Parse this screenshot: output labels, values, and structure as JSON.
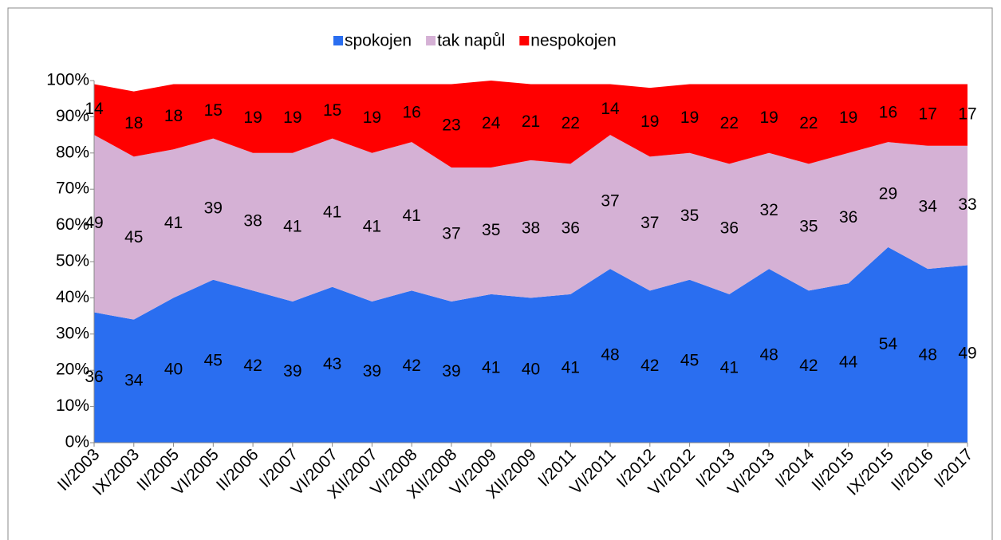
{
  "chart_data": {
    "type": "area",
    "stacked": true,
    "categories": [
      "II/2003",
      "IX/2003",
      "II/2005",
      "VI/2005",
      "II/2006",
      "I/2007",
      "VI/2007",
      "XII/2007",
      "VI/2008",
      "XII/2008",
      "VI/2009",
      "XII/2009",
      "I/2011",
      "VI/2011",
      "I/2012",
      "VI/2012",
      "I/2013",
      "VI/2013",
      "I/2014",
      "II/2015",
      "IX/2015",
      "II/2016",
      "I/2017"
    ],
    "series": [
      {
        "name": "spokojen",
        "color": "#2a6ef0",
        "values": [
          36,
          34,
          40,
          45,
          42,
          39,
          43,
          39,
          42,
          39,
          41,
          40,
          41,
          48,
          42,
          45,
          41,
          48,
          42,
          44,
          54,
          48,
          49
        ]
      },
      {
        "name": "tak napůl",
        "color": "#d5b1d5",
        "values": [
          49,
          45,
          41,
          39,
          38,
          41,
          41,
          41,
          41,
          37,
          35,
          38,
          36,
          37,
          37,
          35,
          36,
          32,
          35,
          36,
          29,
          34,
          33
        ]
      },
      {
        "name": "nespokojen",
        "color": "#ff0000",
        "values": [
          14,
          18,
          18,
          15,
          19,
          19,
          15,
          19,
          16,
          23,
          24,
          21,
          22,
          14,
          19,
          19,
          22,
          19,
          22,
          19,
          16,
          17,
          17
        ]
      }
    ],
    "ylim": [
      0,
      100
    ],
    "yticks": [
      {
        "value": 0,
        "label": "0%"
      },
      {
        "value": 10,
        "label": "10%"
      },
      {
        "value": 20,
        "label": "20%"
      },
      {
        "value": 30,
        "label": "30%"
      },
      {
        "value": 40,
        "label": "40%"
      },
      {
        "value": 50,
        "label": "50%"
      },
      {
        "value": 60,
        "label": "60%"
      },
      {
        "value": 70,
        "label": "70%"
      },
      {
        "value": 80,
        "label": "80%"
      },
      {
        "value": 90,
        "label": "90%"
      },
      {
        "value": 100,
        "label": "100%"
      }
    ],
    "legend": "top"
  }
}
